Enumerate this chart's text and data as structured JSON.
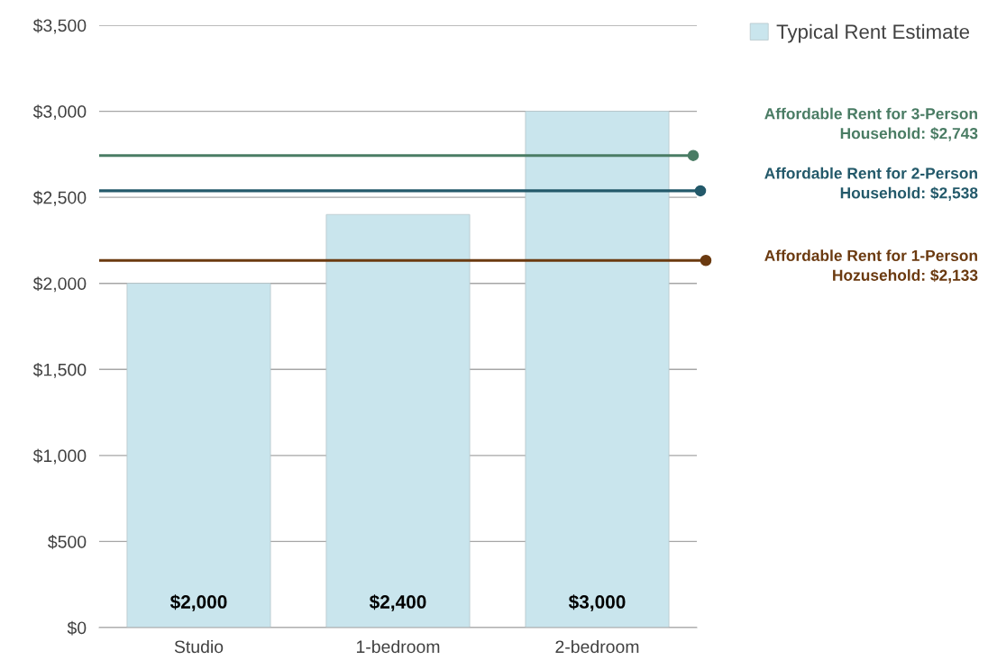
{
  "chart_data": {
    "type": "bar",
    "categories": [
      "Studio",
      "1-bedroom",
      "2-bedroom"
    ],
    "series": [
      {
        "name": "Typical Rent Estimate",
        "color": "#c9e5ed",
        "values": [
          2000,
          2400,
          3000
        ]
      }
    ],
    "ylim": [
      0,
      3500
    ],
    "yticks": [
      {
        "value": 0,
        "label": "$0"
      },
      {
        "value": 500,
        "label": "$500"
      },
      {
        "value": 1000,
        "label": "$1,000"
      },
      {
        "value": 1500,
        "label": "$1,500"
      },
      {
        "value": 2000,
        "label": "$2,000"
      },
      {
        "value": 2500,
        "label": "$2,500"
      },
      {
        "value": 3000,
        "label": "$3,000"
      },
      {
        "value": 3500,
        "label": "$3,500"
      }
    ],
    "grid": "y",
    "legend": "top right",
    "value_labels": [
      "$2,000",
      "$2,400",
      "$3,000"
    ],
    "ref_lines": [
      {
        "axis": "y",
        "value": 2743,
        "label": "Affordable Rent for 3-Person\nHousehold: $2,743",
        "color": "#4a7c64",
        "line_style": "solid"
      },
      {
        "axis": "y",
        "value": 2538,
        "label": "Affordable Rent for 2-Person\nHousehold: $2,538",
        "color": "#23596a",
        "line_style": "solid"
      },
      {
        "axis": "y",
        "value": 2133,
        "label": "Affordable Rent for 1-Person\nHozusehold: $2,133",
        "color": "#6b3a10",
        "line_style": "solid"
      }
    ]
  }
}
